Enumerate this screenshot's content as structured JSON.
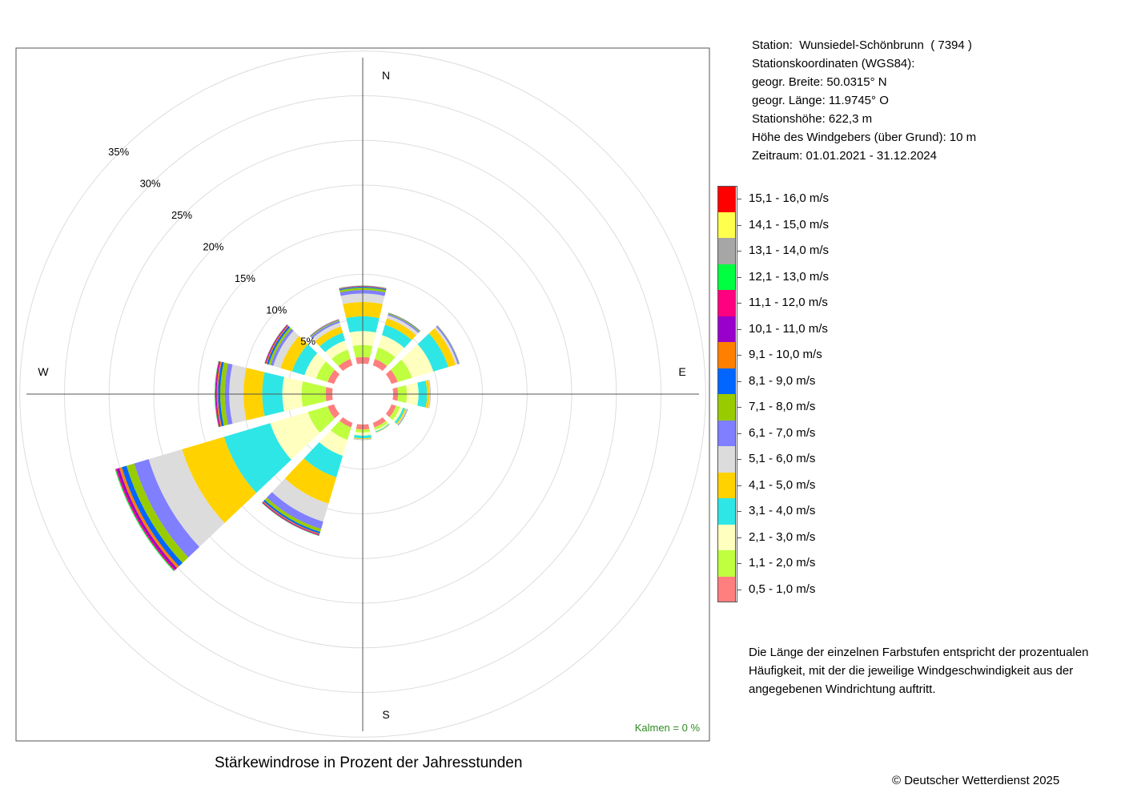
{
  "station": {
    "line1": "Station:  Wunsiedel-Schönbrunn  ( 7394 )",
    "line2": "Stationskoordinaten (WGS84):",
    "line3": "geogr. Breite: 50.0315° N",
    "line4": "geogr. Länge: 11.9745° O",
    "line5": "Stationshöhe: 622,3 m",
    "line6": "Höhe des Windgebers (über Grund): 10 m",
    "line7": "Zeitraum: 01.01.2021 - 31.12.2024"
  },
  "note": "Die Länge der einzelnen Farbstufen entspricht der prozentualen Häufigkeit, mit der die jeweilige Windgeschwindigkeit aus der angegebenen Windrichtung auftritt.",
  "caption": "Stärkewindrose in Prozent der Jahresstunden",
  "copyright": "© Deutscher Wetterdienst  2025",
  "chart_data": {
    "type": "wind-rose",
    "title": "Stärkewindrose in Prozent der Jahresstunden",
    "unit": "%",
    "calm_label": "Kalmen  =  0 %",
    "direction_labels": {
      "N": "N",
      "E": "E",
      "S": "S",
      "W": "W"
    },
    "radial_ticks": [
      5,
      10,
      15,
      20,
      25,
      30,
      35
    ],
    "radial_tick_labels": [
      "5%",
      "10%",
      "15%",
      "20%",
      "25%",
      "30%",
      "35%"
    ],
    "radial_max": 35,
    "grid": true,
    "speed_classes": [
      {
        "label": "0,5 - 1,0 m/s",
        "color": "#ff7f7f"
      },
      {
        "label": "1,1 - 2,0 m/s",
        "color": "#bfff3f"
      },
      {
        "label": "2,1 - 3,0 m/s",
        "color": "#ffffbf"
      },
      {
        "label": "3,1 - 4,0 m/s",
        "color": "#2ee6e6"
      },
      {
        "label": "4,1 - 5,0 m/s",
        "color": "#ffd200"
      },
      {
        "label": "5,1 - 6,0 m/s",
        "color": "#dcdcdc"
      },
      {
        "label": "6,1 - 7,0 m/s",
        "color": "#7f7fff"
      },
      {
        "label": "7,1 - 8,0 m/s",
        "color": "#99cc00"
      },
      {
        "label": "8,1 - 9,0 m/s",
        "color": "#0066ff"
      },
      {
        "label": "9,1 - 10,0 m/s",
        "color": "#ff8000"
      },
      {
        "label": "10,1 - 11,0 m/s",
        "color": "#9900cc"
      },
      {
        "label": "11,1 - 12,0 m/s",
        "color": "#ff0080"
      },
      {
        "label": "12,1 - 13,0 m/s",
        "color": "#00ff40"
      },
      {
        "label": "13,1 - 14,0 m/s",
        "color": "#a6a6a6"
      },
      {
        "label": "14,1 - 15,0 m/s",
        "color": "#ffff4d"
      },
      {
        "label": "15,1 - 16,0 m/s",
        "color": "#ff0000"
      }
    ],
    "sectors": [
      {
        "direction_deg": 0,
        "values": [
          0.75,
          1.35,
          1.55,
          1.65,
          1.6,
          0.95,
          0.4,
          0.25,
          0.12,
          0.05,
          0.04,
          0.02,
          0.02,
          0,
          0,
          0
        ]
      },
      {
        "direction_deg": 30,
        "values": [
          0.75,
          1.35,
          1.45,
          1.2,
          0.75,
          0.35,
          0.15,
          0.1,
          0.04,
          0.02,
          0.01,
          0,
          0,
          0,
          0,
          0
        ]
      },
      {
        "direction_deg": 60,
        "values": [
          0.75,
          1.65,
          2.5,
          1.75,
          0.85,
          0.25,
          0.15,
          0.04,
          0.02,
          0.01,
          0,
          0,
          0,
          0,
          0,
          0
        ]
      },
      {
        "direction_deg": 90,
        "values": [
          0.55,
          1.0,
          1.3,
          0.95,
          0.3,
          0.07,
          0.03,
          0.01,
          0,
          0,
          0,
          0,
          0,
          0,
          0,
          0
        ]
      },
      {
        "direction_deg": 120,
        "values": [
          0.55,
          0.45,
          0.35,
          0.25,
          0.15,
          0.08,
          0.06,
          0.03,
          0.01,
          0,
          0,
          0,
          0,
          0,
          0,
          0
        ]
      },
      {
        "direction_deg": 150,
        "values": [
          0.55,
          0.3,
          0.15,
          0.1,
          0.05,
          0.02,
          0.01,
          0,
          0,
          0,
          0,
          0,
          0,
          0,
          0,
          0
        ]
      },
      {
        "direction_deg": 180,
        "values": [
          0.55,
          0.35,
          0.35,
          0.3,
          0.1,
          0.05,
          0.03,
          0.01,
          0,
          0,
          0,
          0,
          0,
          0,
          0,
          0
        ]
      },
      {
        "direction_deg": 210,
        "values": [
          0.55,
          1.45,
          1.85,
          2.5,
          3.1,
          2.1,
          0.85,
          0.35,
          0.2,
          0.1,
          0.08,
          0.05,
          0.04,
          0,
          0,
          0
        ]
      },
      {
        "direction_deg": 240,
        "values": [
          0.75,
          2.3,
          4.4,
          5.4,
          4.9,
          3.9,
          1.7,
          0.9,
          0.55,
          0.3,
          0.25,
          0.15,
          0.1,
          0,
          0,
          0
        ]
      },
      {
        "direction_deg": 270,
        "values": [
          0.75,
          2.7,
          2.15,
          2.25,
          2.1,
          1.6,
          0.5,
          0.5,
          0.25,
          0.15,
          0.1,
          0.08,
          0.05,
          0,
          0,
          0
        ]
      },
      {
        "direction_deg": 300,
        "values": [
          0.75,
          1.35,
          1.35,
          1.45,
          1.35,
          0.85,
          0.3,
          0.25,
          0.2,
          0.12,
          0.08,
          0.05,
          0.03,
          0,
          0,
          0
        ]
      },
      {
        "direction_deg": 330,
        "values": [
          0.75,
          1.1,
          1.05,
          0.9,
          0.75,
          0.45,
          0.2,
          0.1,
          0.05,
          0.03,
          0.02,
          0,
          0,
          0,
          0,
          0
        ]
      }
    ]
  }
}
